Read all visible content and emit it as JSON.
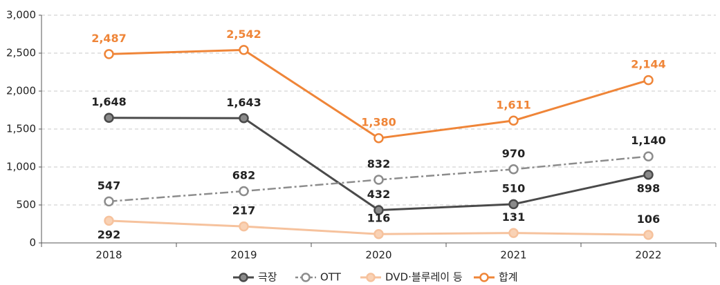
{
  "chart_data": {
    "type": "line",
    "categories": [
      "2018",
      "2019",
      "2020",
      "2021",
      "2022"
    ],
    "ylim": [
      0,
      3000
    ],
    "yticks": [
      0,
      500,
      {
        "value": 1000,
        "label": "1,000"
      },
      {
        "value": 1500,
        "label": "1,500"
      },
      {
        "value": 2000,
        "label": "2,000"
      },
      {
        "value": 2500,
        "label": "2,500"
      },
      {
        "value": 3000,
        "label": "3,000"
      }
    ],
    "grid": true,
    "legend": "bottom",
    "series": [
      {
        "name": "극장",
        "color": "#4a4a4a",
        "values": [
          1648,
          1643,
          432,
          510,
          898
        ],
        "value_labels": [
          "1,648",
          "1,643",
          "432",
          "510",
          "898"
        ]
      },
      {
        "name": "OTT",
        "color": "#8c8c8c",
        "values": [
          547,
          682,
          832,
          970,
          1140
        ],
        "value_labels": [
          "547",
          "682",
          "832",
          "970",
          "1,140"
        ]
      },
      {
        "name": "DVD·블루레이 등",
        "color": "#f6c29d",
        "values": [
          292,
          217,
          116,
          131,
          106
        ],
        "value_labels": [
          "292",
          "217",
          "116",
          "131",
          "106"
        ]
      },
      {
        "name": "합계",
        "color": "#ef8538",
        "values": [
          2487,
          2542,
          1380,
          1611,
          2144
        ],
        "value_labels": [
          "2,487",
          "2,542",
          "1,380",
          "1,611",
          "2,144"
        ]
      }
    ]
  }
}
